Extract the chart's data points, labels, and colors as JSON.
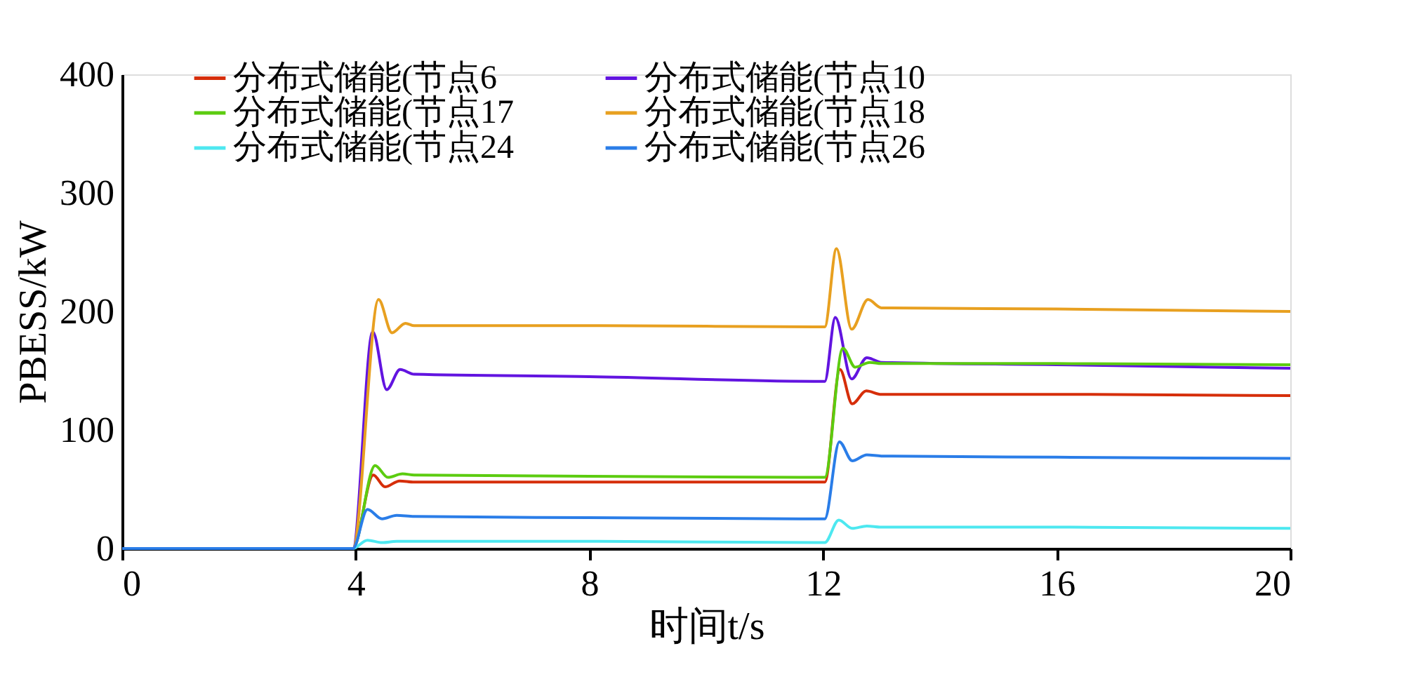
{
  "chart_data": {
    "type": "line",
    "xlabel": "时间t/s",
    "ylabel": "PBESS/kW",
    "xlim": [
      0,
      20
    ],
    "xticks": [
      0,
      4,
      8,
      12,
      16,
      20
    ],
    "ylim": [
      0,
      400
    ],
    "yticks": [
      0,
      100,
      200,
      300,
      400
    ],
    "grid": false,
    "legend": "top",
    "marker": "none",
    "line_style": "solid",
    "series": [
      {
        "name": "分布式储能(节点6",
        "color": "#d62e0a",
        "x": [
          0,
          3.95,
          4.3,
          4.5,
          4.75,
          5.0,
          8,
          12.03,
          12.29,
          12.5,
          12.74,
          13.0,
          16,
          20
        ],
        "values": [
          0,
          0,
          62,
          52,
          57,
          56,
          56,
          56,
          151,
          122,
          133,
          130,
          130,
          129
        ]
      },
      {
        "name": "分布式储能(节点10",
        "color": "#6214e0",
        "x": [
          0,
          3.95,
          4.29,
          4.53,
          4.76,
          5.0,
          8,
          12.03,
          12.21,
          12.49,
          12.75,
          13.0,
          16,
          20
        ],
        "values": [
          0,
          0,
          183,
          134,
          151,
          147,
          145,
          141,
          195,
          143,
          161,
          157,
          155,
          152
        ]
      },
      {
        "name": "分布式储能(节点17",
        "color": "#5ccc10",
        "x": [
          0,
          3.95,
          4.33,
          4.55,
          4.8,
          5.0,
          8,
          12.03,
          12.34,
          12.55,
          12.8,
          13.0,
          16,
          20
        ],
        "values": [
          0,
          0,
          70,
          60,
          63,
          62,
          61,
          60,
          169,
          153,
          157,
          156,
          156,
          155
        ]
      },
      {
        "name": "分布式储能(节点18",
        "color": "#e8a020",
        "x": [
          0,
          3.95,
          4.39,
          4.62,
          4.85,
          5.0,
          8,
          12.03,
          12.23,
          12.49,
          12.77,
          13.0,
          16,
          20
        ],
        "values": [
          0,
          0,
          210,
          182,
          190,
          188,
          188,
          187,
          253,
          185,
          210,
          203,
          202,
          200
        ]
      },
      {
        "name": "分布式储能(节点24",
        "color": "#4de8f0",
        "x": [
          0,
          3.95,
          4.2,
          4.45,
          4.7,
          5.0,
          8,
          12.03,
          12.27,
          12.5,
          12.75,
          13.0,
          16,
          20
        ],
        "values": [
          0,
          0,
          7,
          5,
          6,
          6,
          6,
          5,
          24,
          17,
          19,
          18,
          18,
          17
        ]
      },
      {
        "name": "分布式储能(节点26",
        "color": "#2a7de8",
        "x": [
          0,
          3.95,
          4.2,
          4.45,
          4.7,
          5.0,
          8,
          12.03,
          12.28,
          12.5,
          12.75,
          13.0,
          16,
          20
        ],
        "values": [
          0,
          0,
          33,
          25,
          28,
          27,
          26,
          25,
          90,
          74,
          79,
          78,
          77,
          76
        ]
      }
    ]
  }
}
